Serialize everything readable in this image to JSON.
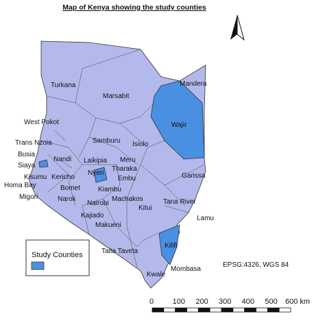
{
  "title": "Map of Kenya showing the study counties",
  "counties": [
    {
      "label": "Turkana"
    },
    {
      "label": "Marsabit"
    },
    {
      "label": "Mandera"
    },
    {
      "label": "West Pokot"
    },
    {
      "label": "Wajir"
    },
    {
      "label": "Samburu"
    },
    {
      "label": "Isiolo"
    },
    {
      "label": "Trans Nzoia"
    },
    {
      "label": "Busia"
    },
    {
      "label": "Nandi"
    },
    {
      "label": "Laikipia"
    },
    {
      "label": "Siaya"
    },
    {
      "label": "Meru"
    },
    {
      "label": "Tharaka"
    },
    {
      "label": "Kisumu"
    },
    {
      "label": "Nyeri"
    },
    {
      "label": "Embu"
    },
    {
      "label": "Homa Bay"
    },
    {
      "label": "Kericho"
    },
    {
      "label": "Bomet"
    },
    {
      "label": "Kiambu"
    },
    {
      "label": "Garissa"
    },
    {
      "label": "Migori"
    },
    {
      "label": "Narok"
    },
    {
      "label": "Machakos"
    },
    {
      "label": "Nairobi"
    },
    {
      "label": "Kitui"
    },
    {
      "label": "Tana River"
    },
    {
      "label": "Lamu"
    },
    {
      "label": "Kajiado"
    },
    {
      "label": "Makueni"
    },
    {
      "label": "Kilifi"
    },
    {
      "label": "Taita Taveta"
    },
    {
      "label": "Mombasa"
    },
    {
      "label": "Kwale"
    }
  ],
  "legend": {
    "title": "Study Counties"
  },
  "crs": "EPSG:4326, WGS 84",
  "scale_bar": {
    "labels": [
      "0",
      "100",
      "200",
      "300",
      "400",
      "500",
      "600 km"
    ]
  }
}
